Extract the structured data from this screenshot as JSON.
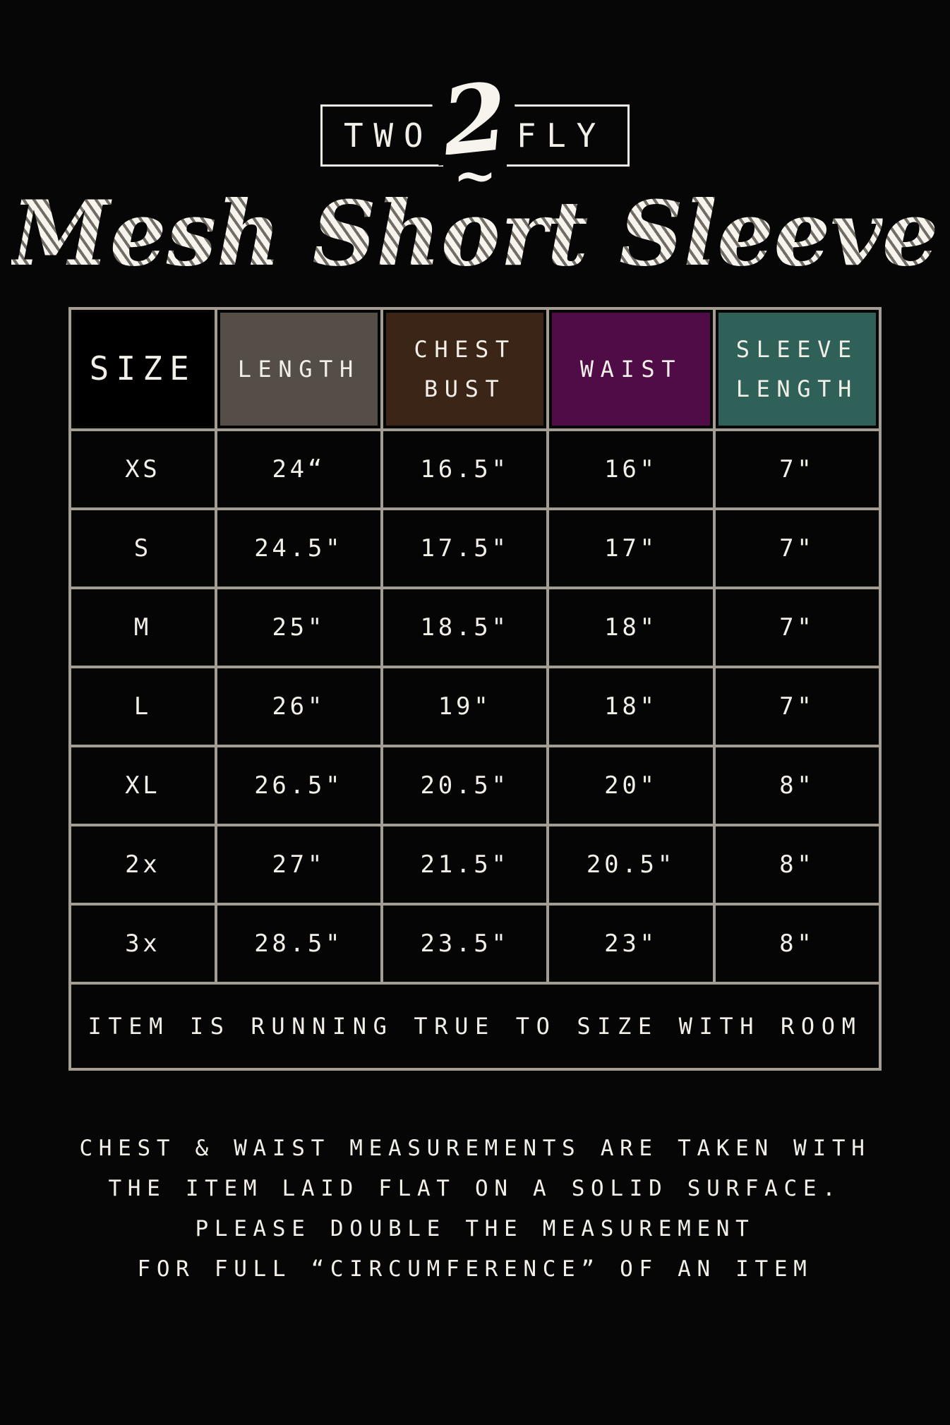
{
  "brand": {
    "word_left": "TWO",
    "numeral": "2",
    "flourish": "~",
    "word_right": "FLY"
  },
  "title": "Mesh Short Sleeve",
  "chart_data": {
    "type": "table",
    "columns": [
      {
        "label": "SIZE",
        "bg": "#000000"
      },
      {
        "label": "LENGTH",
        "bg": "#544e47"
      },
      {
        "label": "CHEST\nBUST",
        "bg": "#3a2516"
      },
      {
        "label": "WAIST",
        "bg": "#500c46"
      },
      {
        "label": "SLEEVE\nLENGTH",
        "bg": "#2f6158"
      }
    ],
    "rows": [
      [
        "XS",
        "24“",
        "16.5\"",
        "16\"",
        "7\""
      ],
      [
        "S",
        "24.5\"",
        "17.5\"",
        "17\"",
        "7\""
      ],
      [
        "M",
        "25\"",
        "18.5\"",
        "18\"",
        "7\""
      ],
      [
        "L",
        "26\"",
        "19\"",
        "18\"",
        "7\""
      ],
      [
        "XL",
        "26.5\"",
        "20.5\"",
        "20\"",
        "8\""
      ],
      [
        "2x",
        "27\"",
        "21.5\"",
        "20.5\"",
        "8\""
      ],
      [
        "3x",
        "28.5\"",
        "23.5\"",
        "23\"",
        "8\""
      ]
    ],
    "footer_note": "ITEM IS RUNNING TRUE TO SIZE WITH ROOM"
  },
  "notes": [
    "CHEST & WAIST MEASUREMENTS ARE TAKEN WITH",
    "THE ITEM LAID FLAT ON A SOLID SURFACE.",
    "PLEASE DOUBLE THE MEASUREMENT",
    "FOR FULL “CIRCUMFERENCE” OF AN ITEM"
  ],
  "colors": {
    "page_bg": "#060606",
    "grid_line": "#a39d93",
    "text": "#f2efe9",
    "header_length_bg": "#544e47",
    "header_chest_bg": "#3a2516",
    "header_waist_bg": "#500c46",
    "header_sleeve_bg": "#2f6158"
  }
}
